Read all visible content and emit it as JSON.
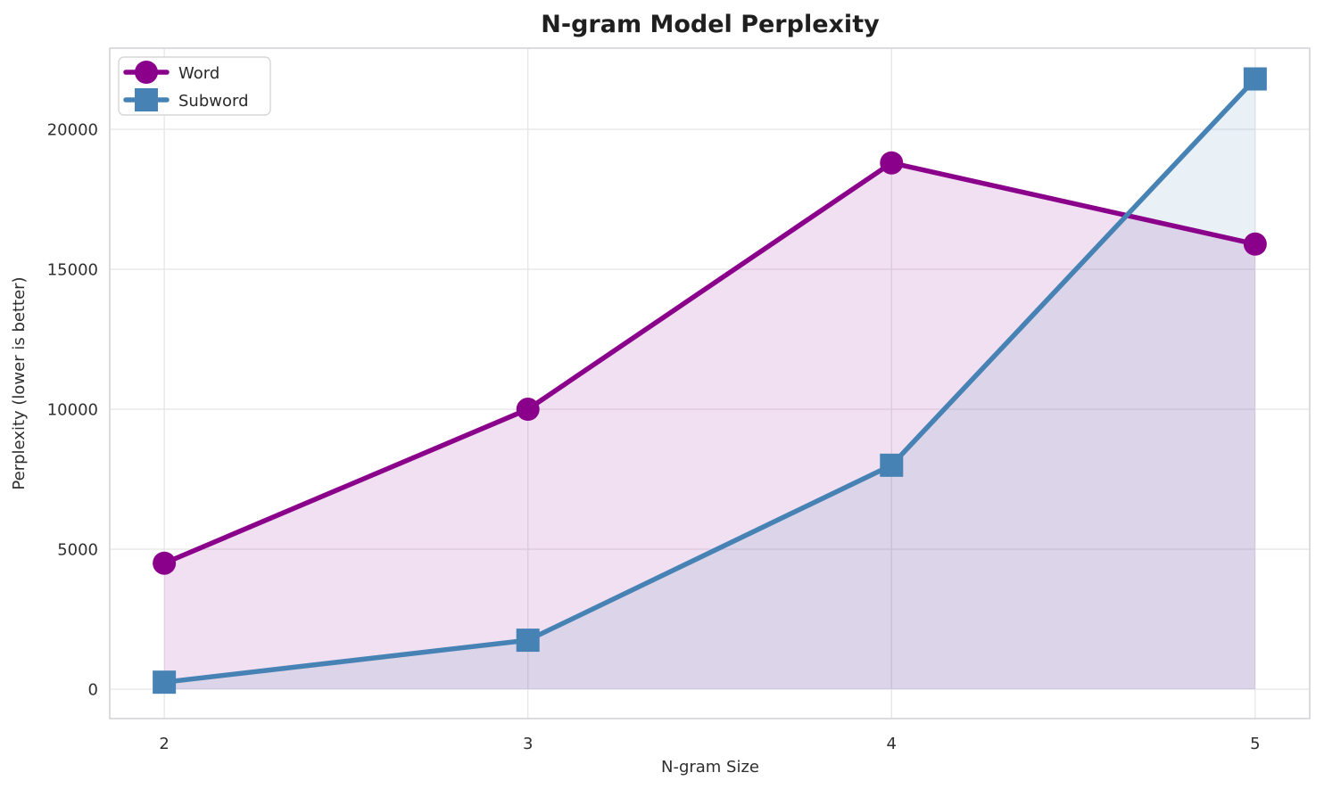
{
  "figure": {
    "title": "N-gram Model Perplexity",
    "background_color": "#ffffff",
    "grid_color": "#e7e7e9",
    "spine_color": "#d4d4d8",
    "text_color": "#2e2e2e"
  },
  "chart_data": {
    "type": "line",
    "title": "N-gram Model Perplexity",
    "xlabel": "N-gram Size",
    "ylabel": "Perplexity (lower is better)",
    "x": [
      2,
      3,
      4,
      5
    ],
    "series": [
      {
        "name": "Word",
        "values": [
          4500,
          10000,
          18800,
          15900
        ],
        "color": "#8B008B",
        "marker": "circle",
        "fill_to_zero": true,
        "fill_opacity": 0.12
      },
      {
        "name": "Subword",
        "values": [
          250,
          1750,
          8000,
          21800
        ],
        "color": "#4682B4",
        "marker": "square",
        "fill_to_zero": true,
        "fill_opacity": 0.12
      }
    ],
    "xticks": [
      2,
      3,
      4,
      5
    ],
    "xtick_labels": [
      "2",
      "3",
      "4",
      "5"
    ],
    "yticks": [
      0,
      5000,
      10000,
      15000,
      20000
    ],
    "ytick_labels": [
      "0",
      "5000",
      "10000",
      "15000",
      "20000"
    ],
    "xlim": [
      1.85,
      5.15
    ],
    "ylim": [
      -1050,
      22900
    ],
    "grid": true,
    "legend_position": "upper left"
  }
}
